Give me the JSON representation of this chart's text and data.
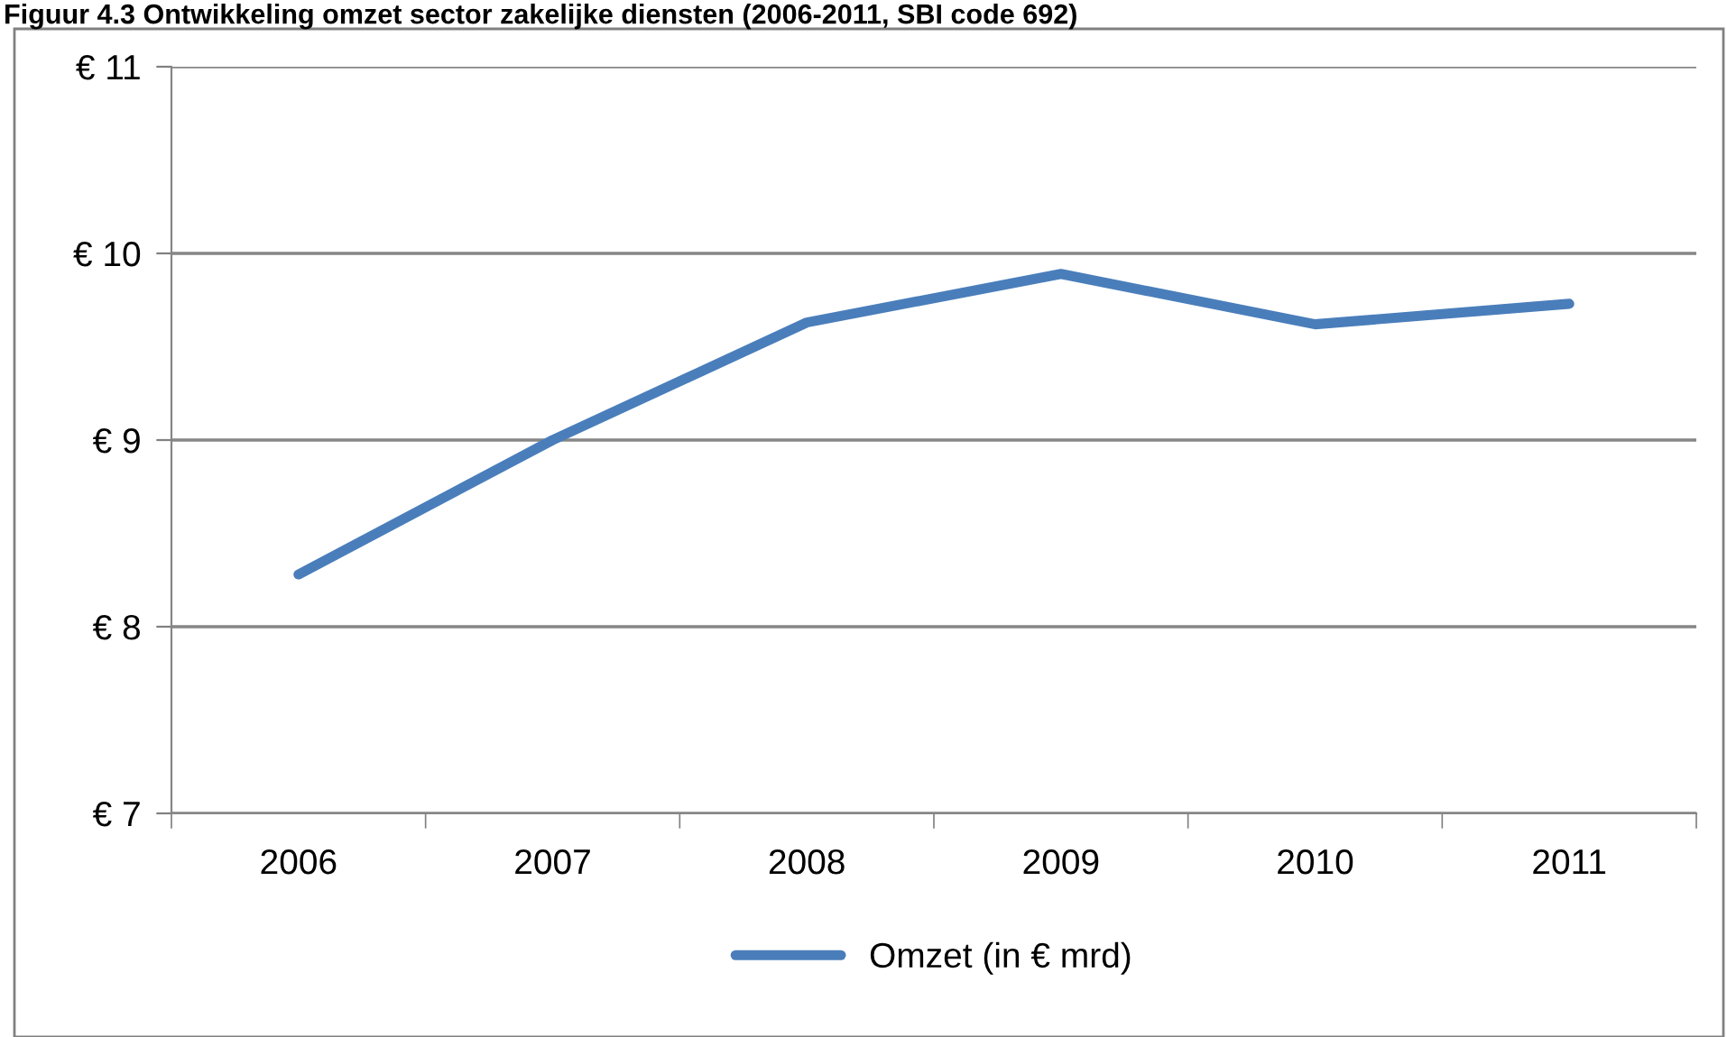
{
  "chart_data": {
    "type": "line",
    "title": "Figuur 4.3 Ontwikkeling omzet sector zakelijke diensten (2006-2011, SBI code 692)",
    "categories": [
      "2006",
      "2007",
      "2008",
      "2009",
      "2010",
      "2011"
    ],
    "series": [
      {
        "name": "Omzet (in € mrd)",
        "color": "#4a7ebb",
        "values": [
          8.28,
          9.0,
          9.63,
          9.89,
          9.62,
          9.73
        ]
      }
    ],
    "ylim": [
      7,
      11
    ],
    "yticks": [
      {
        "value": 7,
        "label": "€ 7"
      },
      {
        "value": 8,
        "label": "€ 8"
      },
      {
        "value": 9,
        "label": "€ 9"
      },
      {
        "value": 10,
        "label": "€ 10"
      },
      {
        "value": 11,
        "label": "€ 11"
      }
    ],
    "grid": "y",
    "legend": "bottom",
    "marker": "none",
    "line_style": "solid"
  }
}
